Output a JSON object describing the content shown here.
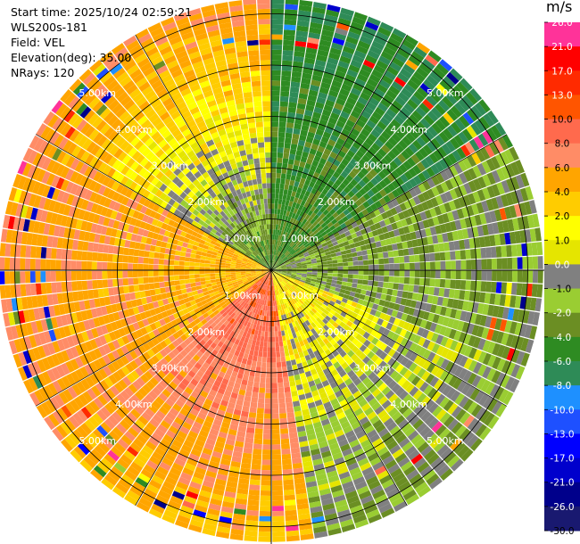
{
  "info": {
    "start_time": "Start time: 2025/10/24 02:59:21",
    "site": "WLS200s-181",
    "field": "Field: VEL",
    "elevation": "Elevation(deg): 35.00",
    "nrays": "NRays: 120"
  },
  "colorbar": {
    "unit": "m/s",
    "ticks": [
      "26.0",
      "21.0",
      "17.0",
      "13.0",
      "10.0",
      "8.0",
      "6.0",
      "4.0",
      "2.0",
      "1.0",
      "0.0",
      "-1.0",
      "-2.0",
      "-4.0",
      "-6.0",
      "-8.0",
      "-10.0",
      "-13.0",
      "-17.0",
      "-21.0",
      "-26.0",
      "-30.0"
    ],
    "colors": [
      "#ff3399",
      "#ff0000",
      "#ff2a00",
      "#ff5500",
      "#ff6a4d",
      "#ff8c66",
      "#ffa500",
      "#ffcc00",
      "#ffff00",
      "#e5e500",
      "#808080",
      "#9acd32",
      "#6b8e23",
      "#2e8b22",
      "#2e8b57",
      "#1e90ff",
      "#1e50ff",
      "#0000ff",
      "#0000cc",
      "#00008b",
      "#191970"
    ]
  },
  "range_labels": [
    "1.00km",
    "2.00km",
    "3.00km",
    "4.00km",
    "5.00km"
  ],
  "chart_data": {
    "type": "heatmap",
    "title": "",
    "field": "VEL",
    "units": "m/s",
    "elevation_deg": 35.0,
    "nrays": 120,
    "rings_km": [
      1,
      2,
      3,
      4,
      5
    ],
    "max_range_km": 5.3,
    "sectors": [
      {
        "azimuth_from_deg": 0,
        "azimuth_to_deg": 60,
        "near_range_value": -4.0,
        "far_range_value": -6.0
      },
      {
        "azimuth_from_deg": 60,
        "azimuth_to_deg": 110,
        "near_range_value": -2.0,
        "far_range_value": -2.0
      },
      {
        "azimuth_from_deg": 110,
        "azimuth_to_deg": 170,
        "near_range_value": 2.0,
        "far_range_value": -2.0
      },
      {
        "azimuth_from_deg": 170,
        "azimuth_to_deg": 230,
        "near_range_value": 10.0,
        "far_range_value": 4.0
      },
      {
        "azimuth_from_deg": 230,
        "azimuth_to_deg": 300,
        "near_range_value": 4.0,
        "far_range_value": 6.0
      },
      {
        "azimuth_from_deg": 300,
        "azimuth_to_deg": 360,
        "near_range_value": -4.0,
        "far_range_value": 6.0
      }
    ]
  }
}
